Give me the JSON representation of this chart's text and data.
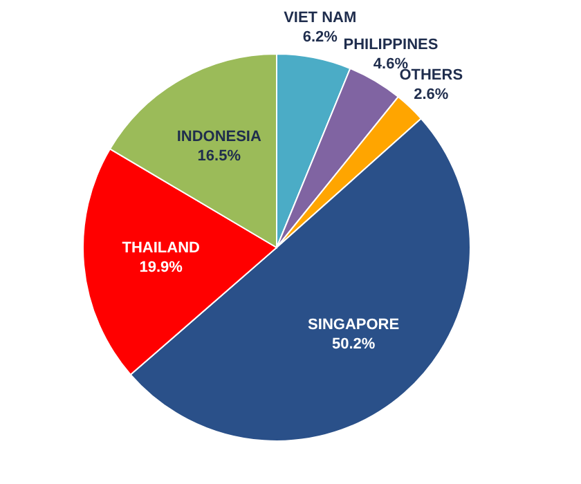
{
  "chart_data": {
    "type": "pie",
    "categories": [
      "VIET NAM",
      "PHILIPPINES",
      "OTHERS",
      "SINGAPORE",
      "THAILAND",
      "INDONESIA"
    ],
    "values": [
      6.2,
      4.6,
      2.6,
      50.2,
      19.9,
      16.5
    ],
    "value_labels": [
      "6.2%",
      "4.6%",
      "2.6%",
      "50.2%",
      "19.9%",
      "16.5%"
    ],
    "colors": [
      "#4bacc6",
      "#8064a2",
      "#ffa500",
      "#2a5089",
      "#ff0000",
      "#9bbb59"
    ],
    "legend": false
  }
}
